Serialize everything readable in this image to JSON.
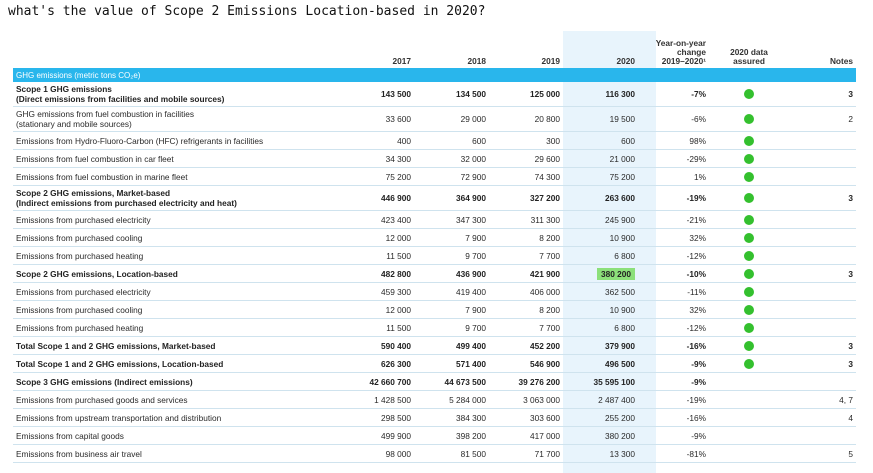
{
  "question": "what's the value of Scope 2 Emissions Location-based in 2020?",
  "columns": {
    "y2017": "2017",
    "y2018": "2018",
    "y2019": "2019",
    "y2020": "2020",
    "yoy": [
      "Year-on-year",
      "change",
      "2019–2020¹"
    ],
    "assured": [
      "2020 data",
      "assured"
    ],
    "notes": "Notes"
  },
  "section": "GHG emissions (metric tons CO₂e)",
  "colors": {
    "section": "#29b6ec",
    "highlight_2020": "#e8f4fc",
    "dot": "#34c02e",
    "highlight_cell": "#8ce07a"
  },
  "rows": [
    {
      "label": [
        "Scope 1 GHG emissions",
        "(Direct emissions from facilities and mobile sources)"
      ],
      "bold": true,
      "v2017": "143 500",
      "v2018": "134 500",
      "v2019": "125 000",
      "v2020": "116 300",
      "yoy": "-7%",
      "assured": true,
      "notes": "3"
    },
    {
      "label": [
        "GHG emissions from fuel combustion in facilities",
        "(stationary and mobile sources)"
      ],
      "bold": false,
      "v2017": "33 600",
      "v2018": "29 000",
      "v2019": "20 800",
      "v2020": "19 500",
      "yoy": "-6%",
      "assured": true,
      "notes": "2"
    },
    {
      "label": [
        "Emissions from Hydro-Fluoro-Carbon (HFC) refrigerants in facilities"
      ],
      "bold": false,
      "v2017": "400",
      "v2018": "600",
      "v2019": "300",
      "v2020": "600",
      "yoy": "98%",
      "assured": true,
      "notes": ""
    },
    {
      "label": [
        "Emissions from fuel combustion in car fleet"
      ],
      "bold": false,
      "v2017": "34 300",
      "v2018": "32 000",
      "v2019": "29 600",
      "v2020": "21 000",
      "yoy": "-29%",
      "assured": true,
      "notes": ""
    },
    {
      "label": [
        "Emissions from fuel combustion in marine fleet"
      ],
      "bold": false,
      "v2017": "75 200",
      "v2018": "72 900",
      "v2019": "74 300",
      "v2020": "75 200",
      "yoy": "1%",
      "assured": true,
      "notes": ""
    },
    {
      "label": [
        "Scope 2 GHG emissions, Market-based",
        "(Indirect emissions from purchased electricity and heat)"
      ],
      "bold": true,
      "v2017": "446 900",
      "v2018": "364 900",
      "v2019": "327 200",
      "v2020": "263 600",
      "yoy": "-19%",
      "assured": true,
      "notes": "3"
    },
    {
      "label": [
        "Emissions from purchased electricity"
      ],
      "bold": false,
      "v2017": "423 400",
      "v2018": "347 300",
      "v2019": "311 300",
      "v2020": "245 900",
      "yoy": "-21%",
      "assured": true,
      "notes": ""
    },
    {
      "label": [
        "Emissions from purchased cooling"
      ],
      "bold": false,
      "v2017": "12 000",
      "v2018": "7 900",
      "v2019": "8 200",
      "v2020": "10 900",
      "yoy": "32%",
      "assured": true,
      "notes": ""
    },
    {
      "label": [
        "Emissions from purchased heating"
      ],
      "bold": false,
      "v2017": "11 500",
      "v2018": "9 700",
      "v2019": "7 700",
      "v2020": "6 800",
      "yoy": "-12%",
      "assured": true,
      "notes": ""
    },
    {
      "label": [
        "Scope 2 GHG emissions, Location-based"
      ],
      "bold": true,
      "v2017": "482 800",
      "v2018": "436 900",
      "v2019": "421 900",
      "v2020": "380 200",
      "yoy": "-10%",
      "assured": true,
      "notes": "3",
      "highlight": true
    },
    {
      "label": [
        "Emissions from purchased electricity"
      ],
      "bold": false,
      "v2017": "459 300",
      "v2018": "419 400",
      "v2019": "406 000",
      "v2020": "362 500",
      "yoy": "-11%",
      "assured": true,
      "notes": ""
    },
    {
      "label": [
        "Emissions from purchased cooling"
      ],
      "bold": false,
      "v2017": "12 000",
      "v2018": "7 900",
      "v2019": "8 200",
      "v2020": "10 900",
      "yoy": "32%",
      "assured": true,
      "notes": ""
    },
    {
      "label": [
        "Emissions from purchased heating"
      ],
      "bold": false,
      "v2017": "11 500",
      "v2018": "9 700",
      "v2019": "7 700",
      "v2020": "6 800",
      "yoy": "-12%",
      "assured": true,
      "notes": ""
    },
    {
      "label": [
        "Total Scope 1 and 2 GHG emissions, Market-based"
      ],
      "bold": true,
      "v2017": "590 400",
      "v2018": "499 400",
      "v2019": "452 200",
      "v2020": "379 900",
      "yoy": "-16%",
      "assured": true,
      "notes": "3"
    },
    {
      "label": [
        "Total Scope 1 and 2 GHG emissions, Location-based"
      ],
      "bold": true,
      "v2017": "626 300",
      "v2018": "571 400",
      "v2019": "546 900",
      "v2020": "496 500",
      "yoy": "-9%",
      "assured": true,
      "notes": "3"
    },
    {
      "label": [
        "Scope 3 GHG emissions (Indirect emissions)"
      ],
      "bold": true,
      "v2017": "42 660 700",
      "v2018": "44 673 500",
      "v2019": "39 276 200",
      "v2020": "35 595 100",
      "yoy": "-9%",
      "assured": false,
      "notes": ""
    },
    {
      "label": [
        "Emissions from purchased goods and services"
      ],
      "bold": false,
      "v2017": "1 428 500",
      "v2018": "5 284 000",
      "v2019": "3 063 000",
      "v2020": "2 487 400",
      "yoy": "-19%",
      "assured": false,
      "notes": "4, 7"
    },
    {
      "label": [
        "Emissions from upstream transportation and distribution"
      ],
      "bold": false,
      "v2017": "298 500",
      "v2018": "384 300",
      "v2019": "303 600",
      "v2020": "255 200",
      "yoy": "-16%",
      "assured": false,
      "notes": "4"
    },
    {
      "label": [
        "Emissions from capital goods"
      ],
      "bold": false,
      "v2017": "499 900",
      "v2018": "398 200",
      "v2019": "417 000",
      "v2020": "380 200",
      "yoy": "-9%",
      "assured": false,
      "notes": ""
    },
    {
      "label": [
        "Emissions from business air travel"
      ],
      "bold": false,
      "v2017": "98 000",
      "v2018": "81 500",
      "v2019": "71 700",
      "v2020": "13 300",
      "yoy": "-81%",
      "assured": false,
      "notes": "5"
    }
  ]
}
